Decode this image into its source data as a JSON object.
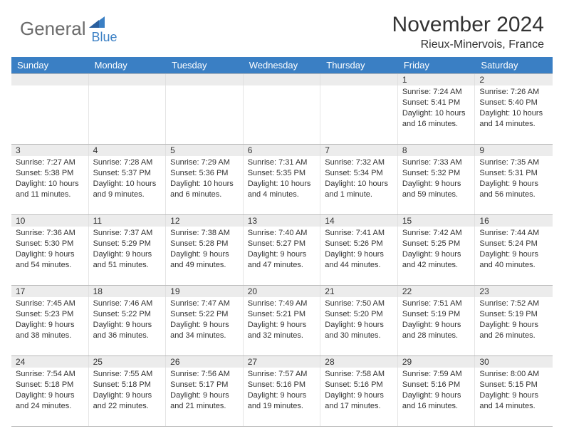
{
  "logo": {
    "text1": "General",
    "text2": "Blue"
  },
  "title": "November 2024",
  "location": "Rieux-Minervois, France",
  "colors": {
    "header_bg": "#3a7fc4",
    "header_text": "#ffffff",
    "daynum_bg": "#ececec",
    "border": "#b8b8b8",
    "text": "#333333",
    "logo_gray": "#6b6b6b",
    "logo_blue": "#3a7fc4"
  },
  "day_names": [
    "Sunday",
    "Monday",
    "Tuesday",
    "Wednesday",
    "Thursday",
    "Friday",
    "Saturday"
  ],
  "weeks": [
    {
      "nums": [
        "",
        "",
        "",
        "",
        "",
        "1",
        "2"
      ],
      "cells": [
        null,
        null,
        null,
        null,
        null,
        {
          "sunrise": "7:24 AM",
          "sunset": "5:41 PM",
          "daylight": "10 hours and 16 minutes."
        },
        {
          "sunrise": "7:26 AM",
          "sunset": "5:40 PM",
          "daylight": "10 hours and 14 minutes."
        }
      ]
    },
    {
      "nums": [
        "3",
        "4",
        "5",
        "6",
        "7",
        "8",
        "9"
      ],
      "cells": [
        {
          "sunrise": "7:27 AM",
          "sunset": "5:38 PM",
          "daylight": "10 hours and 11 minutes."
        },
        {
          "sunrise": "7:28 AM",
          "sunset": "5:37 PM",
          "daylight": "10 hours and 9 minutes."
        },
        {
          "sunrise": "7:29 AM",
          "sunset": "5:36 PM",
          "daylight": "10 hours and 6 minutes."
        },
        {
          "sunrise": "7:31 AM",
          "sunset": "5:35 PM",
          "daylight": "10 hours and 4 minutes."
        },
        {
          "sunrise": "7:32 AM",
          "sunset": "5:34 PM",
          "daylight": "10 hours and 1 minute."
        },
        {
          "sunrise": "7:33 AM",
          "sunset": "5:32 PM",
          "daylight": "9 hours and 59 minutes."
        },
        {
          "sunrise": "7:35 AM",
          "sunset": "5:31 PM",
          "daylight": "9 hours and 56 minutes."
        }
      ]
    },
    {
      "nums": [
        "10",
        "11",
        "12",
        "13",
        "14",
        "15",
        "16"
      ],
      "cells": [
        {
          "sunrise": "7:36 AM",
          "sunset": "5:30 PM",
          "daylight": "9 hours and 54 minutes."
        },
        {
          "sunrise": "7:37 AM",
          "sunset": "5:29 PM",
          "daylight": "9 hours and 51 minutes."
        },
        {
          "sunrise": "7:38 AM",
          "sunset": "5:28 PM",
          "daylight": "9 hours and 49 minutes."
        },
        {
          "sunrise": "7:40 AM",
          "sunset": "5:27 PM",
          "daylight": "9 hours and 47 minutes."
        },
        {
          "sunrise": "7:41 AM",
          "sunset": "5:26 PM",
          "daylight": "9 hours and 44 minutes."
        },
        {
          "sunrise": "7:42 AM",
          "sunset": "5:25 PM",
          "daylight": "9 hours and 42 minutes."
        },
        {
          "sunrise": "7:44 AM",
          "sunset": "5:24 PM",
          "daylight": "9 hours and 40 minutes."
        }
      ]
    },
    {
      "nums": [
        "17",
        "18",
        "19",
        "20",
        "21",
        "22",
        "23"
      ],
      "cells": [
        {
          "sunrise": "7:45 AM",
          "sunset": "5:23 PM",
          "daylight": "9 hours and 38 minutes."
        },
        {
          "sunrise": "7:46 AM",
          "sunset": "5:22 PM",
          "daylight": "9 hours and 36 minutes."
        },
        {
          "sunrise": "7:47 AM",
          "sunset": "5:22 PM",
          "daylight": "9 hours and 34 minutes."
        },
        {
          "sunrise": "7:49 AM",
          "sunset": "5:21 PM",
          "daylight": "9 hours and 32 minutes."
        },
        {
          "sunrise": "7:50 AM",
          "sunset": "5:20 PM",
          "daylight": "9 hours and 30 minutes."
        },
        {
          "sunrise": "7:51 AM",
          "sunset": "5:19 PM",
          "daylight": "9 hours and 28 minutes."
        },
        {
          "sunrise": "7:52 AM",
          "sunset": "5:19 PM",
          "daylight": "9 hours and 26 minutes."
        }
      ]
    },
    {
      "nums": [
        "24",
        "25",
        "26",
        "27",
        "28",
        "29",
        "30"
      ],
      "cells": [
        {
          "sunrise": "7:54 AM",
          "sunset": "5:18 PM",
          "daylight": "9 hours and 24 minutes."
        },
        {
          "sunrise": "7:55 AM",
          "sunset": "5:18 PM",
          "daylight": "9 hours and 22 minutes."
        },
        {
          "sunrise": "7:56 AM",
          "sunset": "5:17 PM",
          "daylight": "9 hours and 21 minutes."
        },
        {
          "sunrise": "7:57 AM",
          "sunset": "5:16 PM",
          "daylight": "9 hours and 19 minutes."
        },
        {
          "sunrise": "7:58 AM",
          "sunset": "5:16 PM",
          "daylight": "9 hours and 17 minutes."
        },
        {
          "sunrise": "7:59 AM",
          "sunset": "5:16 PM",
          "daylight": "9 hours and 16 minutes."
        },
        {
          "sunrise": "8:00 AM",
          "sunset": "5:15 PM",
          "daylight": "9 hours and 14 minutes."
        }
      ]
    }
  ],
  "labels": {
    "sunrise": "Sunrise: ",
    "sunset": "Sunset: ",
    "daylight": "Daylight: "
  }
}
